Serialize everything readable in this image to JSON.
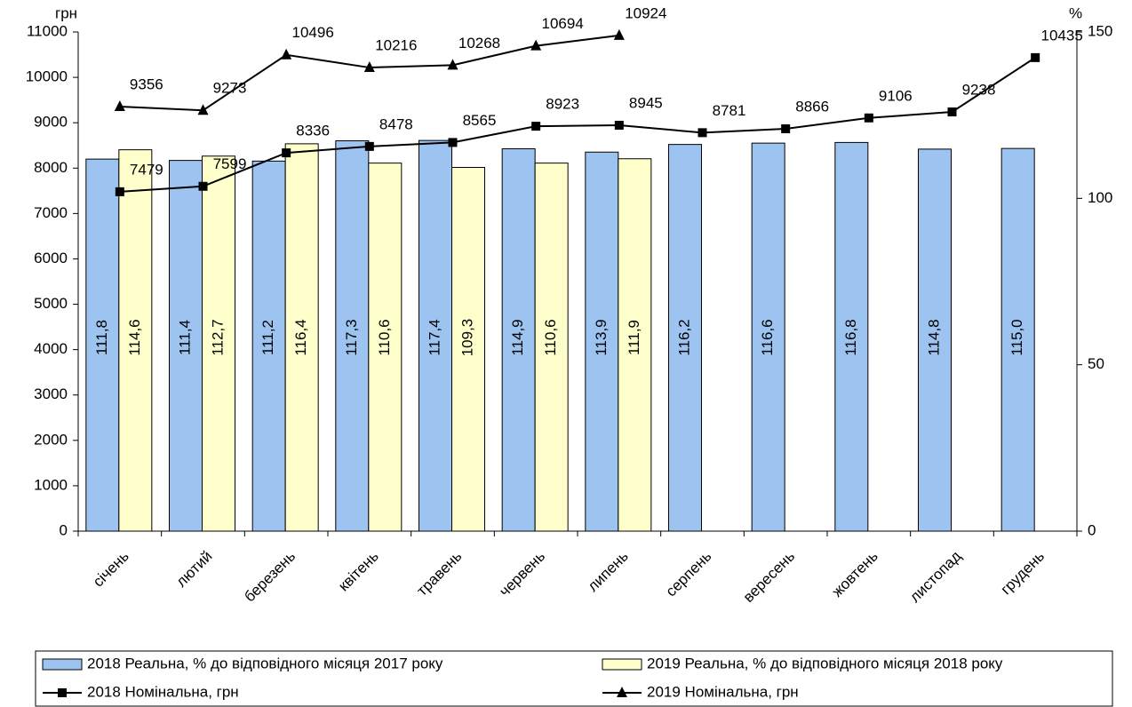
{
  "chart_data": {
    "type": "bar",
    "y_label": "грн",
    "y2_label": "%",
    "categories": [
      "січень",
      "лютий",
      "березень",
      "квітень",
      "травень",
      "червень",
      "липень",
      "серпень",
      "вересень",
      "жовтень",
      "листопад",
      "грудень"
    ],
    "series": [
      {
        "name": "2018 Реальна, % до відповідного місяця 2017 року",
        "type": "bar",
        "axis": "y2",
        "color": "#9dc3f0",
        "values": [
          111.8,
          111.4,
          111.2,
          117.3,
          117.4,
          114.9,
          113.9,
          116.2,
          116.6,
          116.8,
          114.8,
          115.0
        ],
        "value_labels": [
          "111,8",
          "111,4",
          "111,2",
          "117,3",
          "117,4",
          "114,9",
          "113,9",
          "116,2",
          "116,6",
          "116,8",
          "114,8",
          "115,0"
        ]
      },
      {
        "name": "2019 Реальна, % до відповідного місяця 2018 року",
        "type": "bar",
        "axis": "y2",
        "color": "#ffffcc",
        "values": [
          114.6,
          112.7,
          116.4,
          110.6,
          109.3,
          110.6,
          111.9,
          null,
          null,
          null,
          null,
          null
        ],
        "value_labels": [
          "114,6",
          "112,7",
          "116,4",
          "110,6",
          "109,3",
          "110,6",
          "111,9",
          null,
          null,
          null,
          null,
          null
        ]
      },
      {
        "name": "2018 Номінальна, грн",
        "type": "line",
        "marker": "square",
        "color": "#000000",
        "values": [
          7479,
          7599,
          8336,
          8478,
          8565,
          8923,
          8945,
          8781,
          8866,
          9106,
          9238,
          10435
        ]
      },
      {
        "name": "2019 Номінальна, грн",
        "type": "line",
        "marker": "triangle",
        "color": "#000000",
        "values": [
          9356,
          9273,
          10496,
          10216,
          10268,
          10694,
          10924,
          null,
          null,
          null,
          null,
          null
        ]
      }
    ],
    "ylim": [
      0,
      11000
    ],
    "yticks": [
      0,
      1000,
      2000,
      3000,
      4000,
      5000,
      6000,
      7000,
      8000,
      9000,
      10000,
      11000
    ],
    "y2lim": [
      0,
      150
    ],
    "y2ticks": [
      0,
      50,
      100,
      150
    ]
  }
}
